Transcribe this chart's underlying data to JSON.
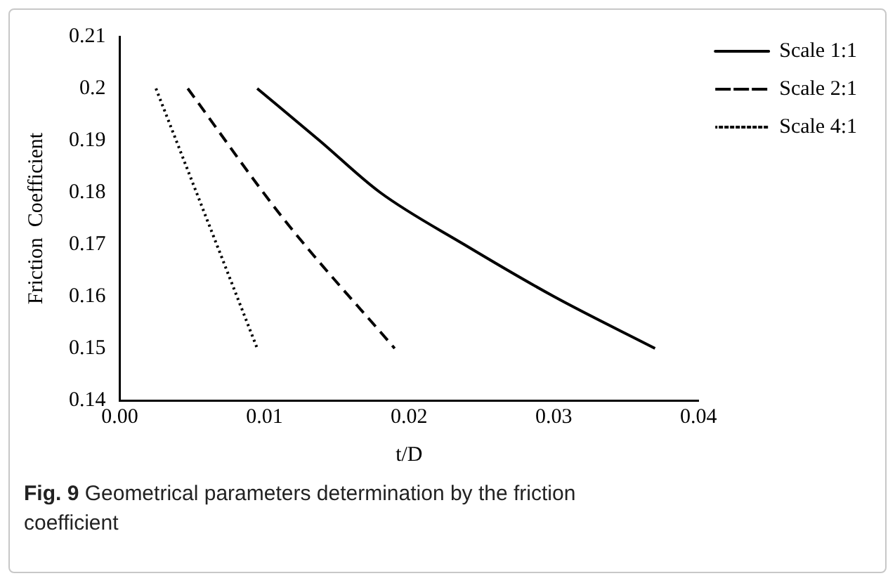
{
  "chart_data": {
    "type": "line",
    "xlabel": "t/D",
    "ylabel": "Friction  Coefficient",
    "xlim": [
      0,
      0.04
    ],
    "xticks": [
      {
        "value": 0,
        "label": "0.00"
      },
      {
        "value": 0.01,
        "label": "0.01"
      },
      {
        "value": 0.02,
        "label": "0.02"
      },
      {
        "value": 0.03,
        "label": "0.03"
      },
      {
        "value": 0.04,
        "label": "0.04"
      }
    ],
    "ylim": [
      0.14,
      0.21
    ],
    "yticks": [
      0.14,
      0.15,
      0.16,
      0.17,
      0.18,
      0.19,
      0.2,
      0.21
    ],
    "grid": false,
    "legend": "right",
    "marker": "none",
    "series": [
      {
        "name": "Scale 1:1",
        "color": "#000000",
        "line_style": "solid",
        "x": [
          0.0095,
          0.0138,
          0.018,
          0.0238,
          0.03,
          0.037
        ],
        "values": [
          0.2,
          0.19,
          0.18,
          0.17,
          0.16,
          0.15
        ]
      },
      {
        "name": "Scale 2:1",
        "color": "#000000",
        "line_style": "dashed",
        "x": [
          0.0047,
          0.0113,
          0.019
        ],
        "values": [
          0.2,
          0.175,
          0.15
        ]
      },
      {
        "name": "Scale 4:1",
        "color": "#000000",
        "line_style": "dotted",
        "x": [
          0.0025,
          0.006,
          0.0095
        ],
        "values": [
          0.2,
          0.175,
          0.15
        ]
      }
    ],
    "annotations": [
      "Fig. 9 Geometrical parameters determination by the friction coefficient"
    ]
  }
}
